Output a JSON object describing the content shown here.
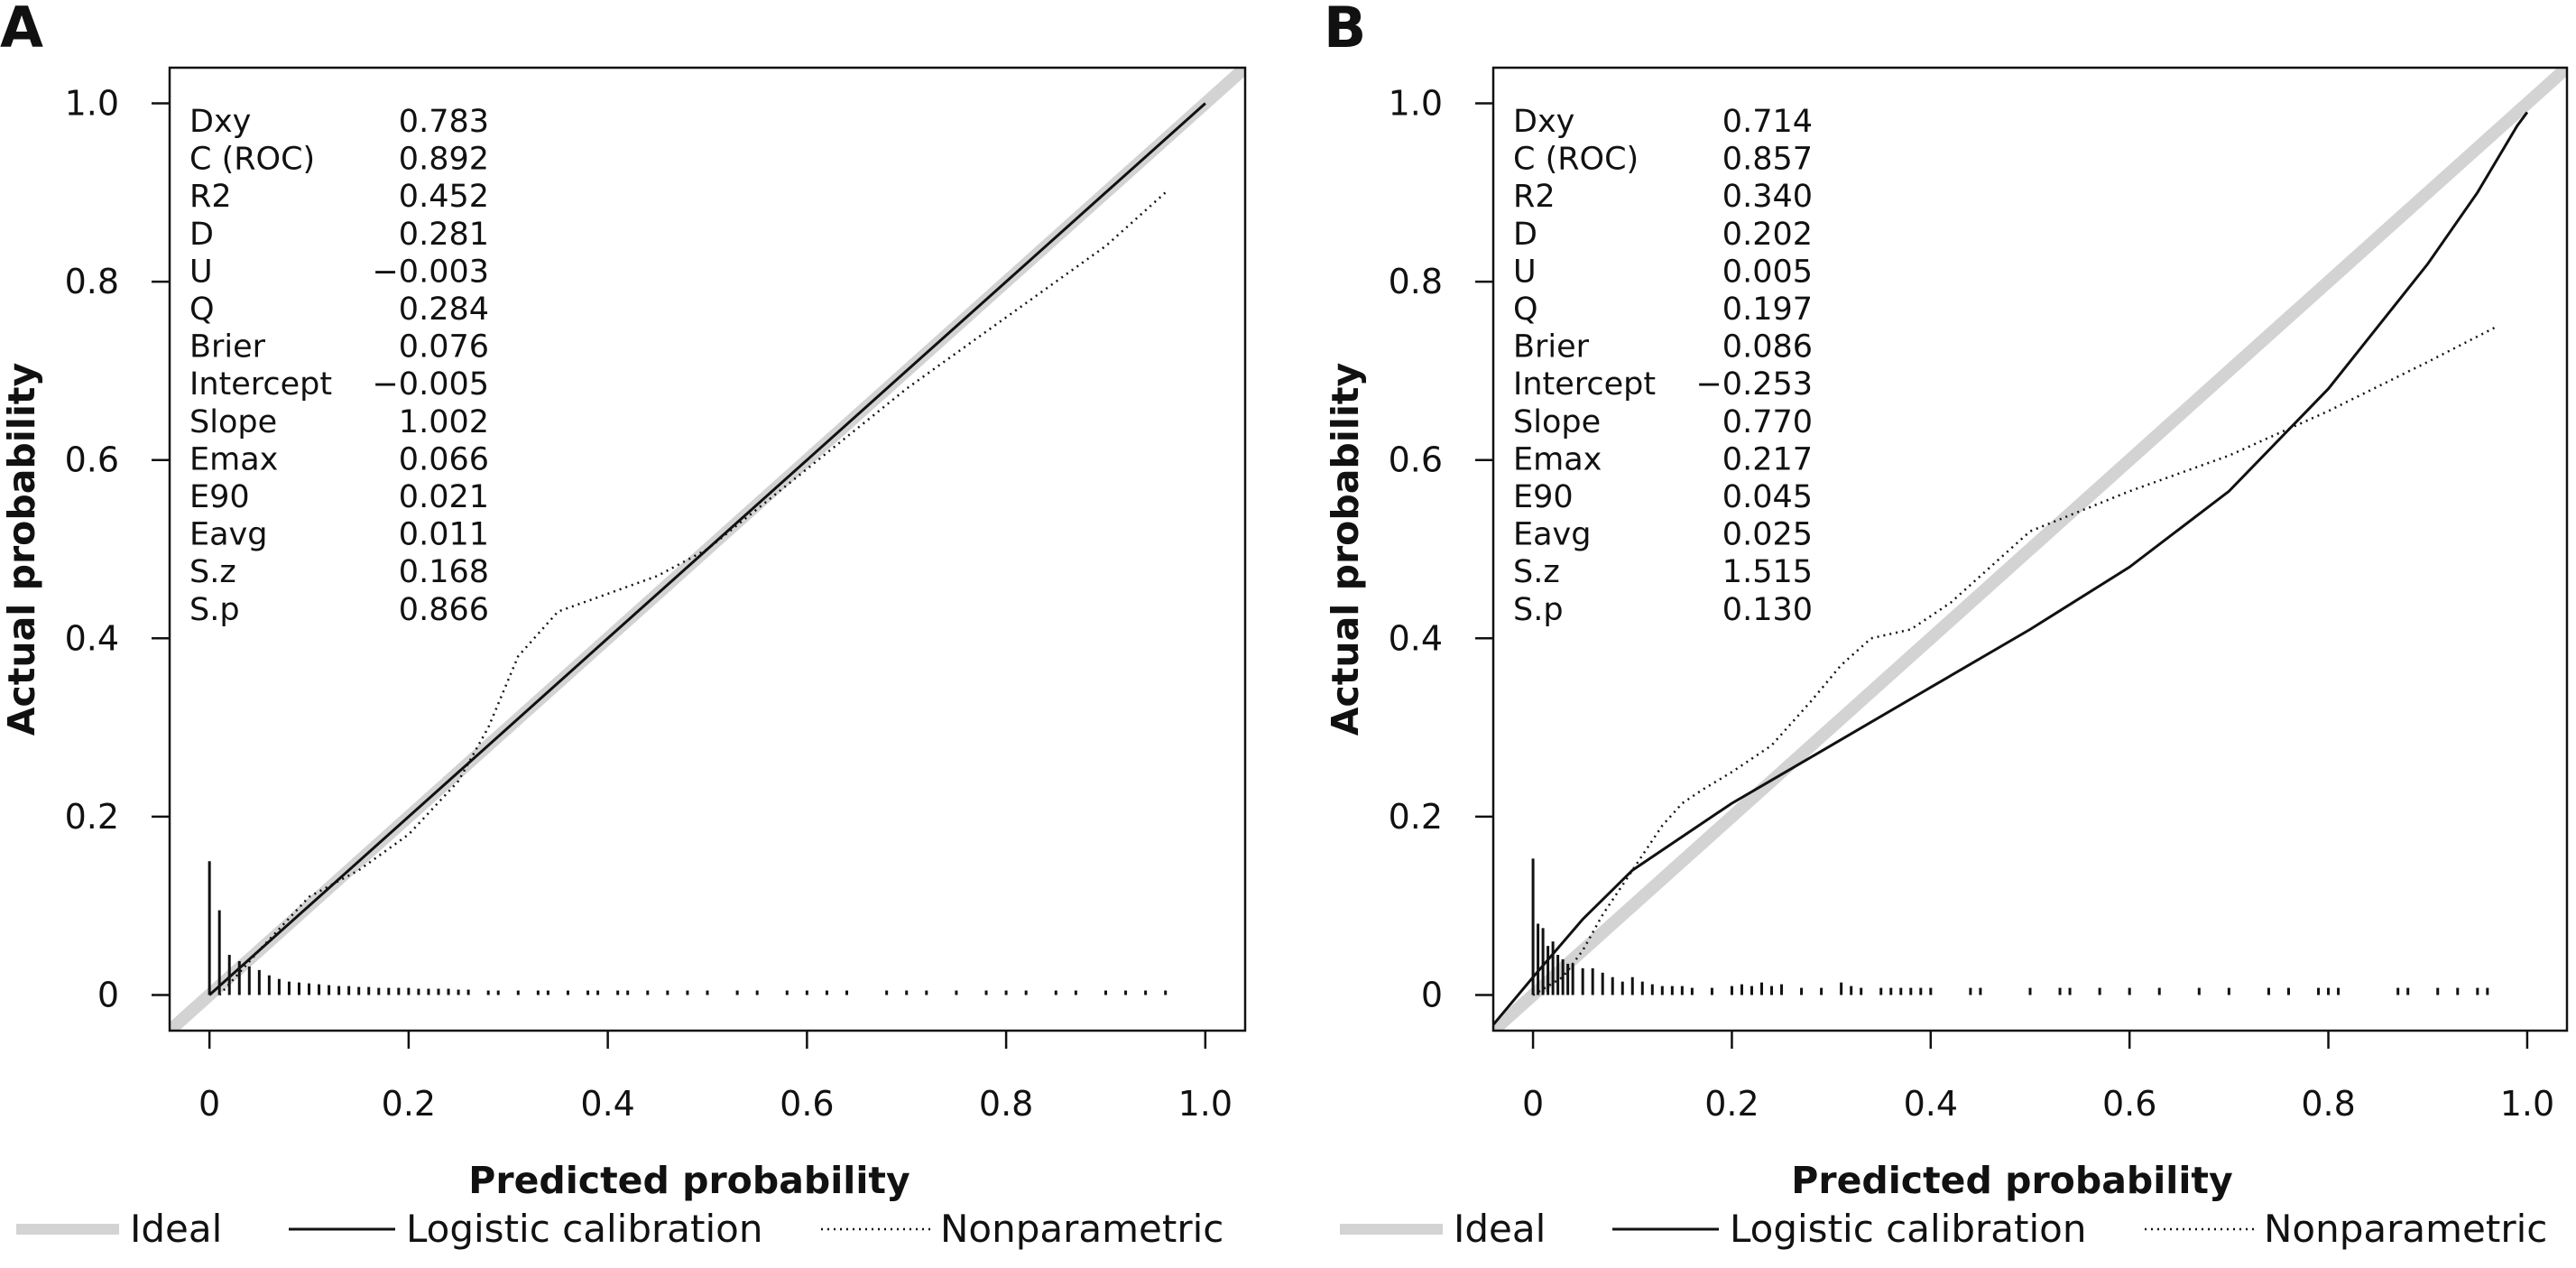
{
  "colors": {
    "ideal": "#d3d3d3",
    "logistic": "#111111",
    "nonparametric": "#111111",
    "frame": "#111111"
  },
  "chart_data": [
    {
      "panel": "A",
      "type": "line",
      "xlabel": "Predicted probability",
      "ylabel": "Actual probability",
      "xlim": [
        -0.04,
        1.04
      ],
      "ylim": [
        -0.04,
        1.04
      ],
      "xticks": [
        "0",
        "0.2",
        "0.4",
        "0.6",
        "0.8",
        "1.0"
      ],
      "yticks": [
        "0",
        "0.2",
        "0.4",
        "0.6",
        "0.8",
        "1.0"
      ],
      "grid": false,
      "stats": [
        {
          "name": "Dxy",
          "value": "0.783"
        },
        {
          "name": "C (ROC)",
          "value": "0.892"
        },
        {
          "name": "R2",
          "value": "0.452"
        },
        {
          "name": "D",
          "value": "0.281"
        },
        {
          "name": "U",
          "value": "−0.003"
        },
        {
          "name": "Q",
          "value": "0.284"
        },
        {
          "name": "Brier",
          "value": "0.076"
        },
        {
          "name": "Intercept",
          "value": "−0.005"
        },
        {
          "name": "Slope",
          "value": "1.002"
        },
        {
          "name": "Emax",
          "value": "0.066"
        },
        {
          "name": "E90",
          "value": "0.021"
        },
        {
          "name": "Eavg",
          "value": "0.011"
        },
        {
          "name": "S.z",
          "value": "0.168"
        },
        {
          "name": "S.p",
          "value": "0.866"
        }
      ],
      "series": [
        {
          "name": "Ideal",
          "style": "thick-gray",
          "x": [
            -0.04,
            1.04
          ],
          "y": [
            -0.04,
            1.04
          ]
        },
        {
          "name": "Logistic calibration",
          "style": "solid",
          "x": [
            0.0,
            0.1,
            0.2,
            0.3,
            0.4,
            0.5,
            0.6,
            0.7,
            0.8,
            0.9,
            1.0
          ],
          "y": [
            0.0,
            0.1,
            0.2,
            0.3,
            0.4,
            0.5,
            0.6,
            0.7,
            0.8,
            0.9,
            1.0
          ]
        },
        {
          "name": "Nonparametric",
          "style": "dotted",
          "x": [
            0.01,
            0.05,
            0.1,
            0.15,
            0.2,
            0.25,
            0.28,
            0.31,
            0.35,
            0.4,
            0.45,
            0.5,
            0.6,
            0.7,
            0.8,
            0.9,
            0.96
          ],
          "y": [
            0.0,
            0.05,
            0.11,
            0.14,
            0.18,
            0.24,
            0.3,
            0.38,
            0.43,
            0.45,
            0.47,
            0.5,
            0.59,
            0.68,
            0.76,
            0.84,
            0.9
          ]
        }
      ],
      "spikes": {
        "x": [
          0.0,
          0.01,
          0.02,
          0.03,
          0.04,
          0.05,
          0.06,
          0.07,
          0.08,
          0.09,
          0.1,
          0.11,
          0.12,
          0.13,
          0.14,
          0.15,
          0.16,
          0.17,
          0.18,
          0.19,
          0.2,
          0.21,
          0.22,
          0.23,
          0.24,
          0.25,
          0.26,
          0.28,
          0.29,
          0.31,
          0.33,
          0.34,
          0.36,
          0.38,
          0.39,
          0.41,
          0.42,
          0.44,
          0.46,
          0.48,
          0.5,
          0.53,
          0.55,
          0.58,
          0.6,
          0.62,
          0.64,
          0.68,
          0.7,
          0.72,
          0.75,
          0.78,
          0.8,
          0.82,
          0.85,
          0.87,
          0.9,
          0.92,
          0.94,
          0.96
        ],
        "h": [
          0.15,
          0.095,
          0.045,
          0.038,
          0.032,
          0.028,
          0.022,
          0.018,
          0.015,
          0.014,
          0.013,
          0.012,
          0.011,
          0.01,
          0.01,
          0.009,
          0.009,
          0.008,
          0.008,
          0.008,
          0.008,
          0.007,
          0.007,
          0.007,
          0.007,
          0.006,
          0.006,
          0.005,
          0.005,
          0.005,
          0.005,
          0.005,
          0.005,
          0.005,
          0.005,
          0.005,
          0.005,
          0.005,
          0.005,
          0.005,
          0.005,
          0.005,
          0.005,
          0.005,
          0.005,
          0.005,
          0.005,
          0.005,
          0.005,
          0.005,
          0.005,
          0.005,
          0.005,
          0.005,
          0.005,
          0.005,
          0.005,
          0.005,
          0.005,
          0.005
        ]
      },
      "legend": {
        "position": "bottom",
        "entries": [
          "Ideal",
          "Logistic calibration",
          "Nonparametric"
        ]
      }
    },
    {
      "panel": "B",
      "type": "line",
      "xlabel": "Predicted probability",
      "ylabel": "Actual probability",
      "xlim": [
        -0.04,
        1.04
      ],
      "ylim": [
        -0.04,
        1.04
      ],
      "xticks": [
        "0",
        "0.2",
        "0.4",
        "0.6",
        "0.8",
        "1.0"
      ],
      "yticks": [
        "0",
        "0.2",
        "0.4",
        "0.6",
        "0.8",
        "1.0"
      ],
      "grid": false,
      "stats": [
        {
          "name": "Dxy",
          "value": "0.714"
        },
        {
          "name": "C (ROC)",
          "value": "0.857"
        },
        {
          "name": "R2",
          "value": "0.340"
        },
        {
          "name": "D",
          "value": "0.202"
        },
        {
          "name": "U",
          "value": "0.005"
        },
        {
          "name": "Q",
          "value": "0.197"
        },
        {
          "name": "Brier",
          "value": "0.086"
        },
        {
          "name": "Intercept",
          "value": "−0.253"
        },
        {
          "name": "Slope",
          "value": "0.770"
        },
        {
          "name": "Emax",
          "value": "0.217"
        },
        {
          "name": "E90",
          "value": "0.045"
        },
        {
          "name": "Eavg",
          "value": "0.025"
        },
        {
          "name": "S.z",
          "value": "1.515"
        },
        {
          "name": "S.p",
          "value": "0.130"
        }
      ],
      "series": [
        {
          "name": "Ideal",
          "style": "thick-gray",
          "x": [
            -0.04,
            1.04
          ],
          "y": [
            -0.04,
            1.04
          ]
        },
        {
          "name": "Logistic calibration",
          "style": "solid",
          "x": [
            -0.045,
            0.0,
            0.05,
            0.1,
            0.2,
            0.3,
            0.4,
            0.5,
            0.6,
            0.7,
            0.8,
            0.9,
            0.95,
            0.99,
            1.0
          ],
          "y": [
            -0.04,
            0.02,
            0.085,
            0.14,
            0.215,
            0.28,
            0.345,
            0.41,
            0.48,
            0.565,
            0.68,
            0.82,
            0.9,
            0.975,
            0.99
          ]
        },
        {
          "name": "Nonparametric",
          "style": "dotted",
          "x": [
            0.0,
            0.03,
            0.05,
            0.07,
            0.1,
            0.13,
            0.15,
            0.17,
            0.2,
            0.24,
            0.28,
            0.31,
            0.34,
            0.38,
            0.42,
            0.5,
            0.6,
            0.7,
            0.8,
            0.9,
            0.97
          ],
          "y": [
            0.0,
            0.02,
            0.05,
            0.09,
            0.14,
            0.19,
            0.215,
            0.23,
            0.25,
            0.28,
            0.33,
            0.37,
            0.4,
            0.41,
            0.44,
            0.52,
            0.565,
            0.605,
            0.655,
            0.71,
            0.75
          ]
        }
      ],
      "spikes": {
        "x": [
          0.0,
          0.005,
          0.01,
          0.015,
          0.02,
          0.025,
          0.03,
          0.035,
          0.04,
          0.05,
          0.06,
          0.07,
          0.08,
          0.09,
          0.1,
          0.11,
          0.12,
          0.13,
          0.14,
          0.15,
          0.16,
          0.18,
          0.2,
          0.21,
          0.22,
          0.23,
          0.24,
          0.25,
          0.27,
          0.29,
          0.31,
          0.32,
          0.33,
          0.35,
          0.36,
          0.37,
          0.38,
          0.39,
          0.4,
          0.44,
          0.45,
          0.5,
          0.53,
          0.54,
          0.57,
          0.6,
          0.63,
          0.67,
          0.7,
          0.74,
          0.76,
          0.79,
          0.8,
          0.81,
          0.87,
          0.88,
          0.91,
          0.93,
          0.95,
          0.96
        ],
        "h": [
          0.153,
          0.08,
          0.075,
          0.055,
          0.06,
          0.045,
          0.04,
          0.035,
          0.035,
          0.03,
          0.03,
          0.025,
          0.02,
          0.015,
          0.02,
          0.015,
          0.012,
          0.01,
          0.01,
          0.01,
          0.008,
          0.008,
          0.01,
          0.012,
          0.01,
          0.014,
          0.01,
          0.012,
          0.008,
          0.008,
          0.014,
          0.01,
          0.008,
          0.008,
          0.008,
          0.008,
          0.008,
          0.008,
          0.008,
          0.008,
          0.008,
          0.008,
          0.008,
          0.008,
          0.008,
          0.008,
          0.008,
          0.008,
          0.008,
          0.008,
          0.008,
          0.008,
          0.008,
          0.008,
          0.008,
          0.008,
          0.008,
          0.008,
          0.008,
          0.008
        ]
      },
      "legend": {
        "position": "bottom",
        "entries": [
          "Ideal",
          "Logistic calibration",
          "Nonparametric"
        ]
      }
    }
  ]
}
